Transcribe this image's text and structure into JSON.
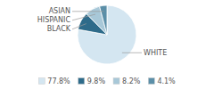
{
  "chart_data": {
    "type": "pie",
    "categories": [
      "WHITE",
      "BLACK",
      "HISPANIC",
      "ASIAN"
    ],
    "values": [
      77.8,
      9.8,
      8.2,
      4.1
    ],
    "value_labels": [
      "77.8%",
      "9.8%",
      "8.2%",
      "4.1%"
    ],
    "colors": [
      "#d4e6f1",
      "#2e6b8a",
      "#a8c8d8",
      "#5b8fa8"
    ],
    "legend": "bottom"
  }
}
